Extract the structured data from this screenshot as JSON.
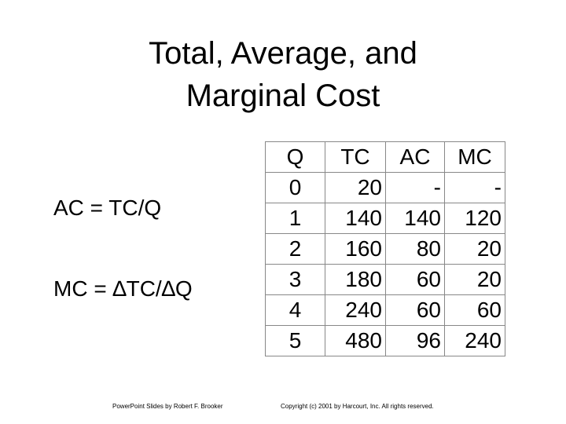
{
  "title": {
    "lines": [
      "Total, Average, and",
      "Marginal Cost"
    ]
  },
  "formulas": [
    "AC = TC/Q",
    "MC = ∆TC/∆Q"
  ],
  "table": {
    "header": [
      "Q",
      "TC",
      "AC",
      "MC"
    ],
    "rows": [
      [
        0,
        20,
        "-",
        "-"
      ],
      [
        1,
        140,
        140,
        120
      ],
      [
        2,
        160,
        80,
        20
      ],
      [
        3,
        180,
        60,
        20
      ],
      [
        4,
        240,
        60,
        60
      ],
      [
        5,
        480,
        96,
        240
      ]
    ]
  },
  "footer": {
    "left": "PowerPoint Slides by Robert F. Brooker",
    "right": "Copyright (c) 2001 by Harcourt, Inc. All rights reserved."
  }
}
